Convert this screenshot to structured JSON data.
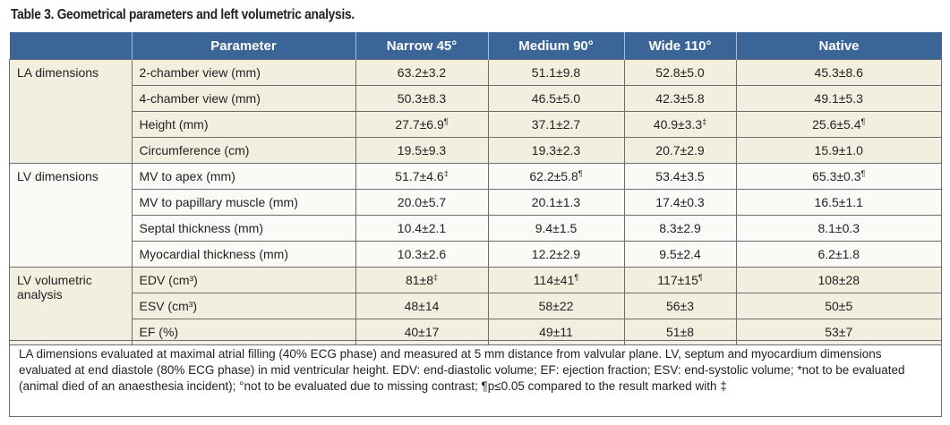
{
  "title": "Table 3. Geometrical parameters and left volumetric analysis.",
  "headers": [
    "",
    "Parameter",
    "Narrow 45°",
    "Medium 90°",
    "Wide 110°",
    "Native"
  ],
  "groups": [
    {
      "label": "LA dimensions",
      "rows": [
        {
          "param": "2-chamber view (mm)",
          "values": [
            {
              "v": "63.2±3.2",
              "m": ""
            },
            {
              "v": "51.1±9.8",
              "m": ""
            },
            {
              "v": "52.8±5.0",
              "m": ""
            },
            {
              "v": "45.3±8.6",
              "m": ""
            }
          ]
        },
        {
          "param": "4-chamber view (mm)",
          "values": [
            {
              "v": "50.3±8.3",
              "m": ""
            },
            {
              "v": "46.5±5.0",
              "m": ""
            },
            {
              "v": "42.3±5.8",
              "m": ""
            },
            {
              "v": "49.1±5.3",
              "m": ""
            }
          ]
        },
        {
          "param": "Height (mm)",
          "values": [
            {
              "v": "27.7±6.9",
              "m": "¶"
            },
            {
              "v": "37.1±2.7",
              "m": ""
            },
            {
              "v": "40.9±3.3",
              "m": "‡"
            },
            {
              "v": "25.6±5.4",
              "m": "¶"
            }
          ]
        },
        {
          "param": "Circumference (cm)",
          "values": [
            {
              "v": "19.5±9.3",
              "m": ""
            },
            {
              "v": "19.3±2.3",
              "m": ""
            },
            {
              "v": "20.7±2.9",
              "m": ""
            },
            {
              "v": "15.9±1.0",
              "m": ""
            }
          ]
        }
      ]
    },
    {
      "label": "LV dimensions",
      "rows": [
        {
          "param": "MV to apex (mm)",
          "values": [
            {
              "v": "51.7±4.6",
              "m": "‡"
            },
            {
              "v": "62.2±5.8",
              "m": "¶"
            },
            {
              "v": "53.4±3.5",
              "m": ""
            },
            {
              "v": "65.3±0.3",
              "m": "¶"
            }
          ]
        },
        {
          "param": "MV to papillary muscle (mm)",
          "values": [
            {
              "v": "20.0±5.7",
              "m": ""
            },
            {
              "v": "20.1±1.3",
              "m": ""
            },
            {
              "v": "17.4±0.3",
              "m": ""
            },
            {
              "v": "16.5±1.1",
              "m": ""
            }
          ]
        },
        {
          "param": "Septal thickness (mm)",
          "values": [
            {
              "v": "10.4±2.1",
              "m": ""
            },
            {
              "v": "9.4±1.5",
              "m": ""
            },
            {
              "v": "8.3±2.9",
              "m": ""
            },
            {
              "v": "8.1±0.3",
              "m": ""
            }
          ]
        },
        {
          "param": "Myocardial thickness (mm)",
          "values": [
            {
              "v": "10.3±2.6",
              "m": ""
            },
            {
              "v": "12.2±2.9",
              "m": ""
            },
            {
              "v": "9.5±2.4",
              "m": ""
            },
            {
              "v": "6.2±1.8",
              "m": ""
            }
          ]
        }
      ]
    },
    {
      "label": "LV volumetric analysis",
      "rows": [
        {
          "param": "EDV (cm³)",
          "values": [
            {
              "v": "81±8",
              "m": "‡"
            },
            {
              "v": "114±41",
              "m": "¶"
            },
            {
              "v": "117±15",
              "m": "¶"
            },
            {
              "v": "108±28",
              "m": ""
            }
          ]
        },
        {
          "param": "ESV (cm³)",
          "values": [
            {
              "v": "48±14",
              "m": ""
            },
            {
              "v": "58±22",
              "m": ""
            },
            {
              "v": "56±3",
              "m": ""
            },
            {
              "v": "50±5",
              "m": ""
            }
          ]
        },
        {
          "param": "EF (%)",
          "values": [
            {
              "v": "40±17",
              "m": ""
            },
            {
              "v": "49±11",
              "m": ""
            },
            {
              "v": "51±8",
              "m": ""
            },
            {
              "v": "53±7",
              "m": ""
            }
          ]
        }
      ]
    }
  ],
  "footnote": "LA dimensions evaluated at maximal atrial filling (40% ECG phase) and measured at 5 mm distance from valvular plane. LV, septum and myocardium dimensions evaluated at end diastole (80% ECG phase) in mid ventricular height. EDV: end-diastolic volume; EF: ejection fraction; ESV: end-systolic volume; *not to be evaluated (animal died of an anaesthesia incident); °not to be evaluated due to missing contrast; ¶p≤0.05 compared to the result marked with ‡",
  "colors": {
    "header": "#3b6597",
    "band_a": "#f2eee0",
    "band_b": "#fafaf6"
  }
}
